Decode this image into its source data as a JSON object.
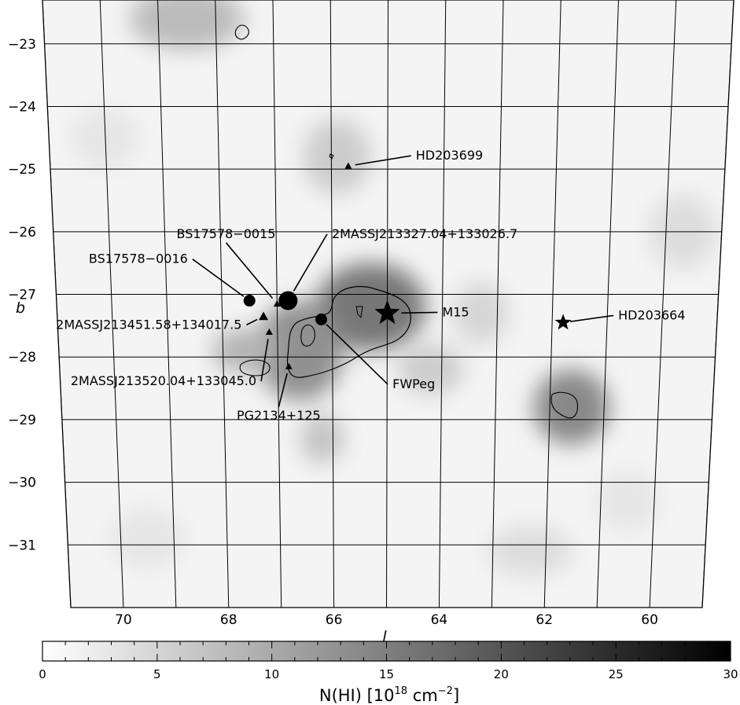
{
  "chart_data": {
    "type": "heatmap",
    "title": "",
    "xlabel": "l",
    "ylabel": "b",
    "xlim": [
      71,
      59
    ],
    "ylim": [
      -32,
      -22.3
    ],
    "x_ticks": [
      70,
      68,
      66,
      64,
      62,
      60
    ],
    "y_ticks": [
      -23,
      -24,
      -25,
      -26,
      -27,
      -28,
      -29,
      -30,
      -31
    ],
    "grid": true,
    "colormap": "greyscale (white = 0, black = 30)",
    "colorbar": {
      "label_main": "N(HI)  [10",
      "label_exp1": "18",
      "label_unit": " cm",
      "label_exp2": "−2",
      "label_close": "]",
      "range": [
        0,
        30
      ],
      "ticks": [
        "0",
        "5",
        "10",
        "15",
        "20",
        "25",
        "30"
      ]
    },
    "blobs": [
      {
        "l": 65.3,
        "b": -27.2,
        "rl": 1.0,
        "rb": 0.7,
        "peak": 16
      },
      {
        "l": 66.6,
        "b": -27.9,
        "rl": 0.8,
        "rb": 0.8,
        "peak": 13
      },
      {
        "l": 66.2,
        "b": -29.3,
        "rl": 0.4,
        "rb": 0.4,
        "peak": 7
      },
      {
        "l": 67.6,
        "b": -27.9,
        "rl": 0.6,
        "rb": 0.35,
        "peak": 9
      },
      {
        "l": 61.6,
        "b": -28.8,
        "rl": 0.7,
        "rb": 0.6,
        "peak": 14
      },
      {
        "l": 68.5,
        "b": -22.6,
        "rl": 1.0,
        "rb": 0.5,
        "peak": 8
      },
      {
        "l": 65.9,
        "b": -24.8,
        "rl": 0.6,
        "rb": 0.6,
        "peak": 6
      },
      {
        "l": 64.2,
        "b": -28.2,
        "rl": 0.6,
        "rb": 0.4,
        "peak": 6
      },
      {
        "l": 63.3,
        "b": -27.3,
        "rl": 0.5,
        "rb": 0.5,
        "peak": 5
      },
      {
        "l": 59.7,
        "b": -26.0,
        "rl": 0.6,
        "rb": 0.6,
        "peak": 4
      },
      {
        "l": 70.0,
        "b": -24.5,
        "rl": 0.6,
        "rb": 0.5,
        "peak": 3
      },
      {
        "l": 62.3,
        "b": -31.1,
        "rl": 0.8,
        "rb": 0.4,
        "peak": 4
      },
      {
        "l": 60.5,
        "b": -30.3,
        "rl": 0.6,
        "rb": 0.5,
        "peak": 3
      },
      {
        "l": 69.5,
        "b": -30.9,
        "rl": 0.7,
        "rb": 0.5,
        "peak": 3
      }
    ],
    "objects": [
      {
        "name": "HD203699",
        "l": 65.7,
        "b": -24.95,
        "marker": "triangle-small",
        "label_l": 64.5,
        "label_b": -24.85,
        "anchor": "start"
      },
      {
        "name": "BS17578−0015",
        "l": 67.0,
        "b": -27.15,
        "marker": "triangle-small",
        "label_l": 67.9,
        "label_b": -26.1,
        "anchor": "middle"
      },
      {
        "name": "2MASSJ213327.04+133026.7",
        "l": 66.8,
        "b": -27.1,
        "marker": "circle-large",
        "label_l": 66.0,
        "label_b": -26.1,
        "anchor": "start"
      },
      {
        "name": "BS17578−0016",
        "l": 67.5,
        "b": -27.1,
        "marker": "circle",
        "label_l": 68.6,
        "label_b": -26.5,
        "anchor": "end"
      },
      {
        "name": "2MASSJ213451.58+134017.5",
        "l": 67.25,
        "b": -27.35,
        "marker": "triangle",
        "label_l": 67.65,
        "label_b": -27.55,
        "anchor": "end"
      },
      {
        "name": "2MASSJ213520.04+133045.0",
        "l": 67.15,
        "b": -27.6,
        "marker": "triangle-small",
        "label_l": 67.4,
        "label_b": -28.45,
        "anchor": "end"
      },
      {
        "name": "PG2134+125",
        "l": 66.8,
        "b": -28.15,
        "marker": "triangle-small",
        "label_l": 67.0,
        "label_b": -29.0,
        "anchor": "middle"
      },
      {
        "name": "FWPeg",
        "l": 66.2,
        "b": -27.4,
        "marker": "circle",
        "label_l": 64.9,
        "label_b": -28.5,
        "anchor": "start"
      },
      {
        "name": "M15",
        "l": 65.0,
        "b": -27.3,
        "marker": "star-large",
        "label_l": 64.0,
        "label_b": -27.35,
        "anchor": "start"
      },
      {
        "name": "HD203664",
        "l": 61.8,
        "b": -27.45,
        "marker": "star",
        "label_l": 60.8,
        "label_b": -27.4,
        "anchor": "start"
      }
    ]
  }
}
